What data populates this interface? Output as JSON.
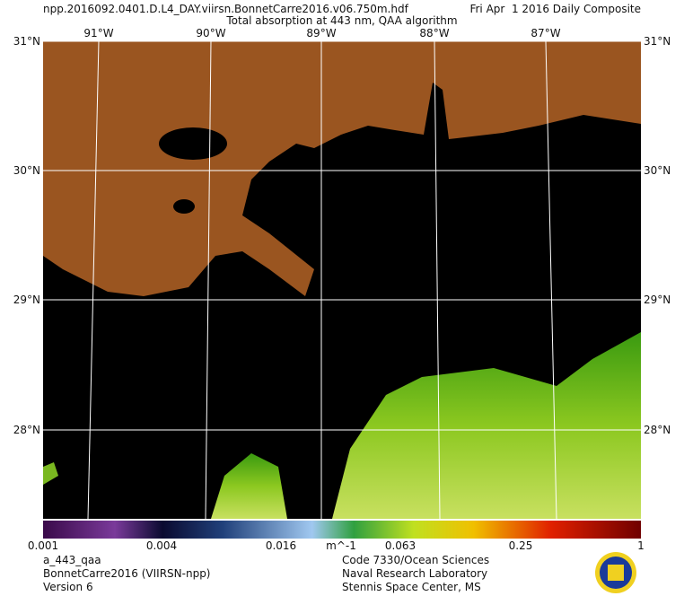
{
  "header": {
    "file": "npp.2016092.0401.D.L4_DAY.viirsn.BonnetCarre2016.v06.750m.hdf",
    "date": "Fri Apr  1 2016 Daily Composite",
    "title": "Total absorption at 443 nm, QAA algorithm"
  },
  "longitudes": [
    "91°W",
    "90°W",
    "89°W",
    "88°W",
    "87°W"
  ],
  "latitudes": [
    "31°N",
    "30°N",
    "29°N",
    "28°N"
  ],
  "colorbar": {
    "labels": [
      "0.001",
      "0.004",
      "0.016",
      "0.063",
      "0.25",
      "1"
    ],
    "unit": "m^-1"
  },
  "footer": {
    "left": [
      "a_443_qaa",
      "BonnetCarre2016 (VIIRSN-npp)",
      "Version 6"
    ],
    "center": [
      "Code 7330/Ocean Sciences",
      "Naval Research Laboratory",
      "Stennis Space Center, MS"
    ]
  }
}
